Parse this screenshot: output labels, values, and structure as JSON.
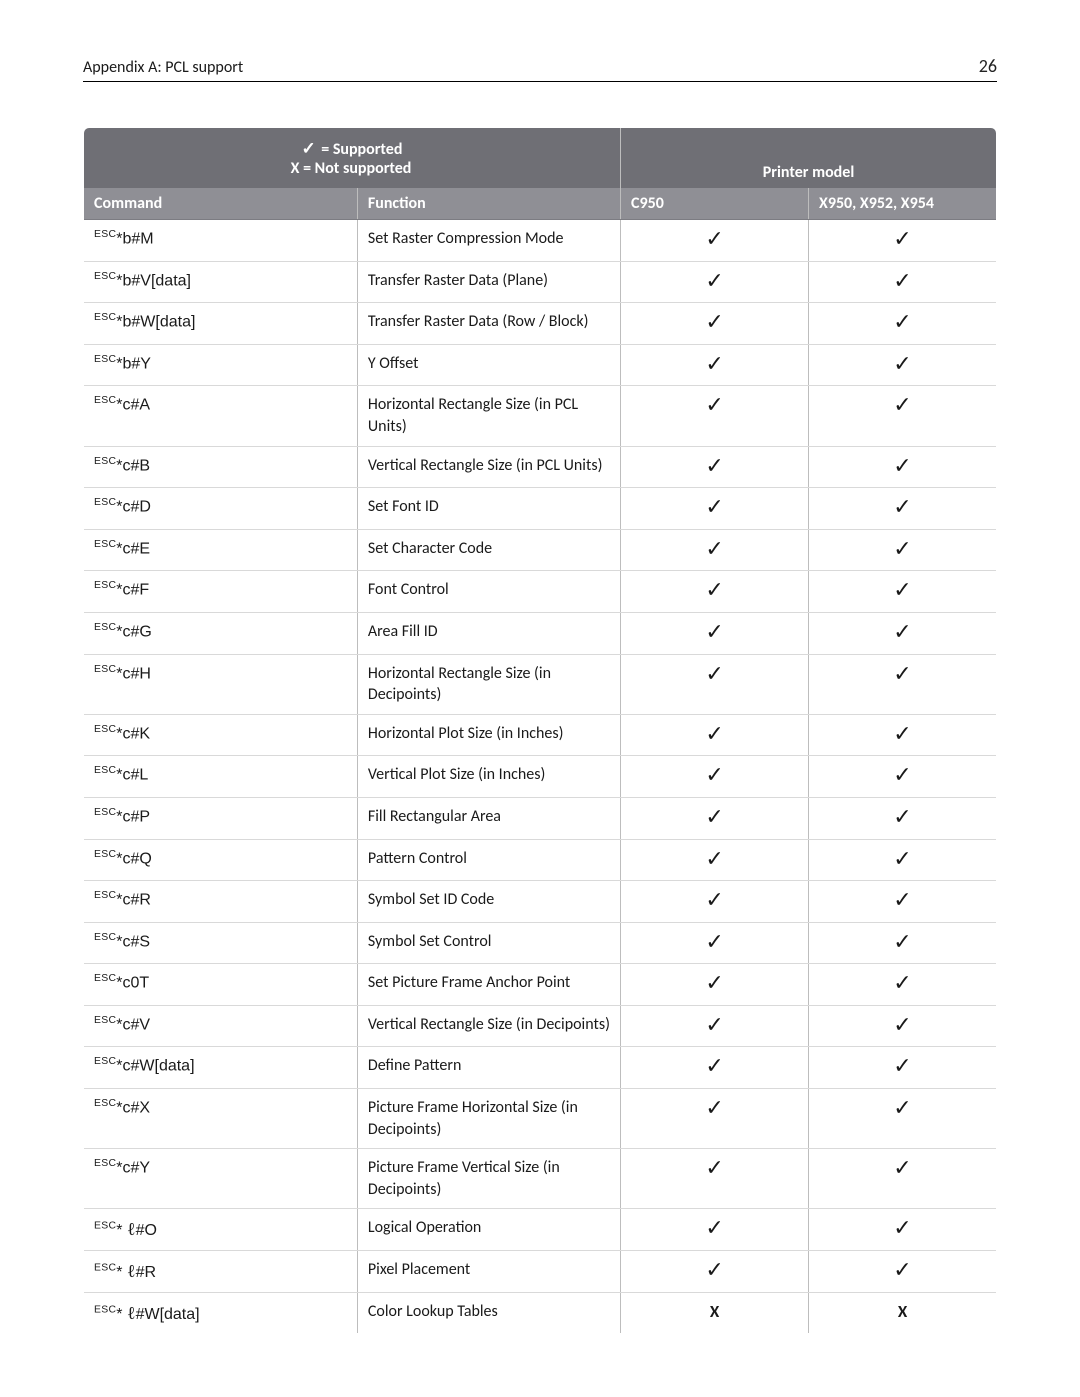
{
  "header": {
    "title": "Appendix A: PCL support",
    "page_number": "26"
  },
  "legend": {
    "supported_symbol": "✓",
    "supported_text": " = Supported",
    "not_supported_text": "X = Not supported"
  },
  "columns": {
    "command": "Command",
    "function": "Function",
    "printer_model_header": "Printer model",
    "model1": "C950",
    "model2": "X950, X952, X954"
  },
  "marks": {
    "check": "✓",
    "x": "X"
  },
  "rows": [
    {
      "esc": "ESC",
      "cmd": "*b#M",
      "script": false,
      "func": "Set Raster Compression Mode",
      "m1": "check",
      "m2": "check"
    },
    {
      "esc": "ESC",
      "cmd": "*b#V[data]",
      "script": false,
      "func": "Transfer Raster Data (Plane)",
      "m1": "check",
      "m2": "check"
    },
    {
      "esc": "ESC",
      "cmd": "*b#W[data]",
      "script": false,
      "func": "Transfer Raster Data (Row / Block)",
      "m1": "check",
      "m2": "check"
    },
    {
      "esc": "ESC",
      "cmd": "*b#Y",
      "script": false,
      "func": "Y Offset",
      "m1": "check",
      "m2": "check"
    },
    {
      "esc": "ESC",
      "cmd": "*c#A",
      "script": false,
      "func": "Horizontal Rectangle Size (in PCL Units)",
      "m1": "check",
      "m2": "check"
    },
    {
      "esc": "ESC",
      "cmd": "*c#B",
      "script": false,
      "func": "Vertical Rectangle Size (in PCL Units)",
      "m1": "check",
      "m2": "check"
    },
    {
      "esc": "ESC",
      "cmd": "*c#D",
      "script": false,
      "func": "Set Font ID",
      "m1": "check",
      "m2": "check"
    },
    {
      "esc": "ESC",
      "cmd": "*c#E",
      "script": false,
      "func": "Set Character Code",
      "m1": "check",
      "m2": "check"
    },
    {
      "esc": "ESC",
      "cmd": "*c#F",
      "script": false,
      "func": "Font Control",
      "m1": "check",
      "m2": "check"
    },
    {
      "esc": "ESC",
      "cmd": "*c#G",
      "script": false,
      "func": "Area Fill ID",
      "m1": "check",
      "m2": "check"
    },
    {
      "esc": "ESC",
      "cmd": "*c#H",
      "script": false,
      "func": "Horizontal Rectangle Size (in Decipoints)",
      "m1": "check",
      "m2": "check"
    },
    {
      "esc": "ESC",
      "cmd": "*c#K",
      "script": false,
      "func": "Horizontal Plot Size (in Inches)",
      "m1": "check",
      "m2": "check"
    },
    {
      "esc": "ESC",
      "cmd": "*c#L",
      "script": false,
      "func": "Vertical Plot Size (in Inches)",
      "m1": "check",
      "m2": "check"
    },
    {
      "esc": "ESC",
      "cmd": "*c#P",
      "script": false,
      "func": "Fill Rectangular Area",
      "m1": "check",
      "m2": "check"
    },
    {
      "esc": "ESC",
      "cmd": "*c#Q",
      "script": false,
      "func": "Pattern Control",
      "m1": "check",
      "m2": "check"
    },
    {
      "esc": "ESC",
      "cmd": "*c#R",
      "script": false,
      "func": "Symbol Set ID Code",
      "m1": "check",
      "m2": "check"
    },
    {
      "esc": "ESC",
      "cmd": "*c#S",
      "script": false,
      "func": "Symbol Set Control",
      "m1": "check",
      "m2": "check"
    },
    {
      "esc": "ESC",
      "cmd": "*c0T",
      "script": false,
      "func": "Set Picture Frame Anchor Point",
      "m1": "check",
      "m2": "check"
    },
    {
      "esc": "ESC",
      "cmd": "*c#V",
      "script": false,
      "func": "Vertical Rectangle Size (in Decipoints)",
      "m1": "check",
      "m2": "check"
    },
    {
      "esc": "ESC",
      "cmd": "*c#W[data]",
      "script": false,
      "func": "Define Pattern",
      "m1": "check",
      "m2": "check"
    },
    {
      "esc": "ESC",
      "cmd": "*c#X",
      "script": false,
      "func": "Picture Frame Horizontal Size (in Decipoints)",
      "m1": "check",
      "m2": "check"
    },
    {
      "esc": "ESC",
      "cmd": "*c#Y",
      "script": false,
      "func": "Picture Frame Vertical Size (in Decipoints)",
      "m1": "check",
      "m2": "check"
    },
    {
      "esc": "ESC",
      "cmd": "#O",
      "script": true,
      "func": "Logical Operation",
      "m1": "check",
      "m2": "check"
    },
    {
      "esc": "ESC",
      "cmd": "#R",
      "script": true,
      "func": "Pixel Placement",
      "m1": "check",
      "m2": "check"
    },
    {
      "esc": "ESC",
      "cmd": "#W[data]",
      "script": true,
      "func": "Color Lookup Tables",
      "m1": "x",
      "m2": "x"
    }
  ]
}
